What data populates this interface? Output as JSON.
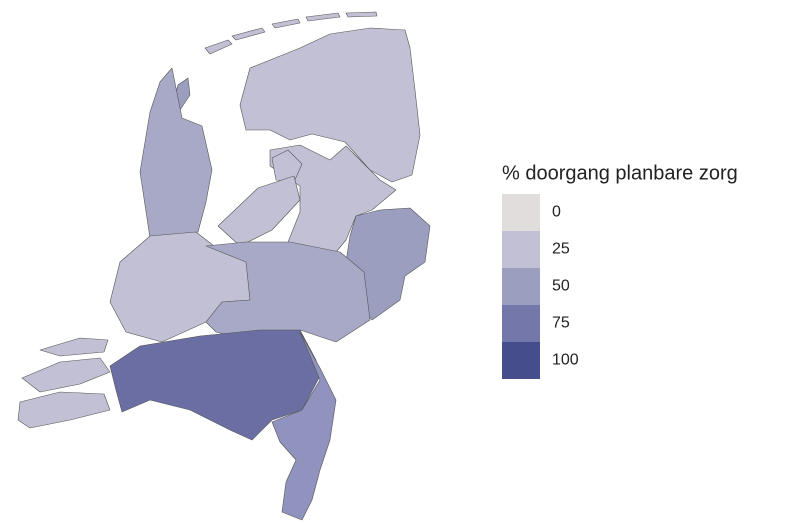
{
  "legend": {
    "title": "% doorgang planbare zorg",
    "values": [
      0,
      25,
      50,
      75,
      100
    ],
    "colors": [
      "#e1dddd",
      "#c1c0d4",
      "#9c9ec0",
      "#7477a9",
      "#454d8c"
    ]
  }
}
